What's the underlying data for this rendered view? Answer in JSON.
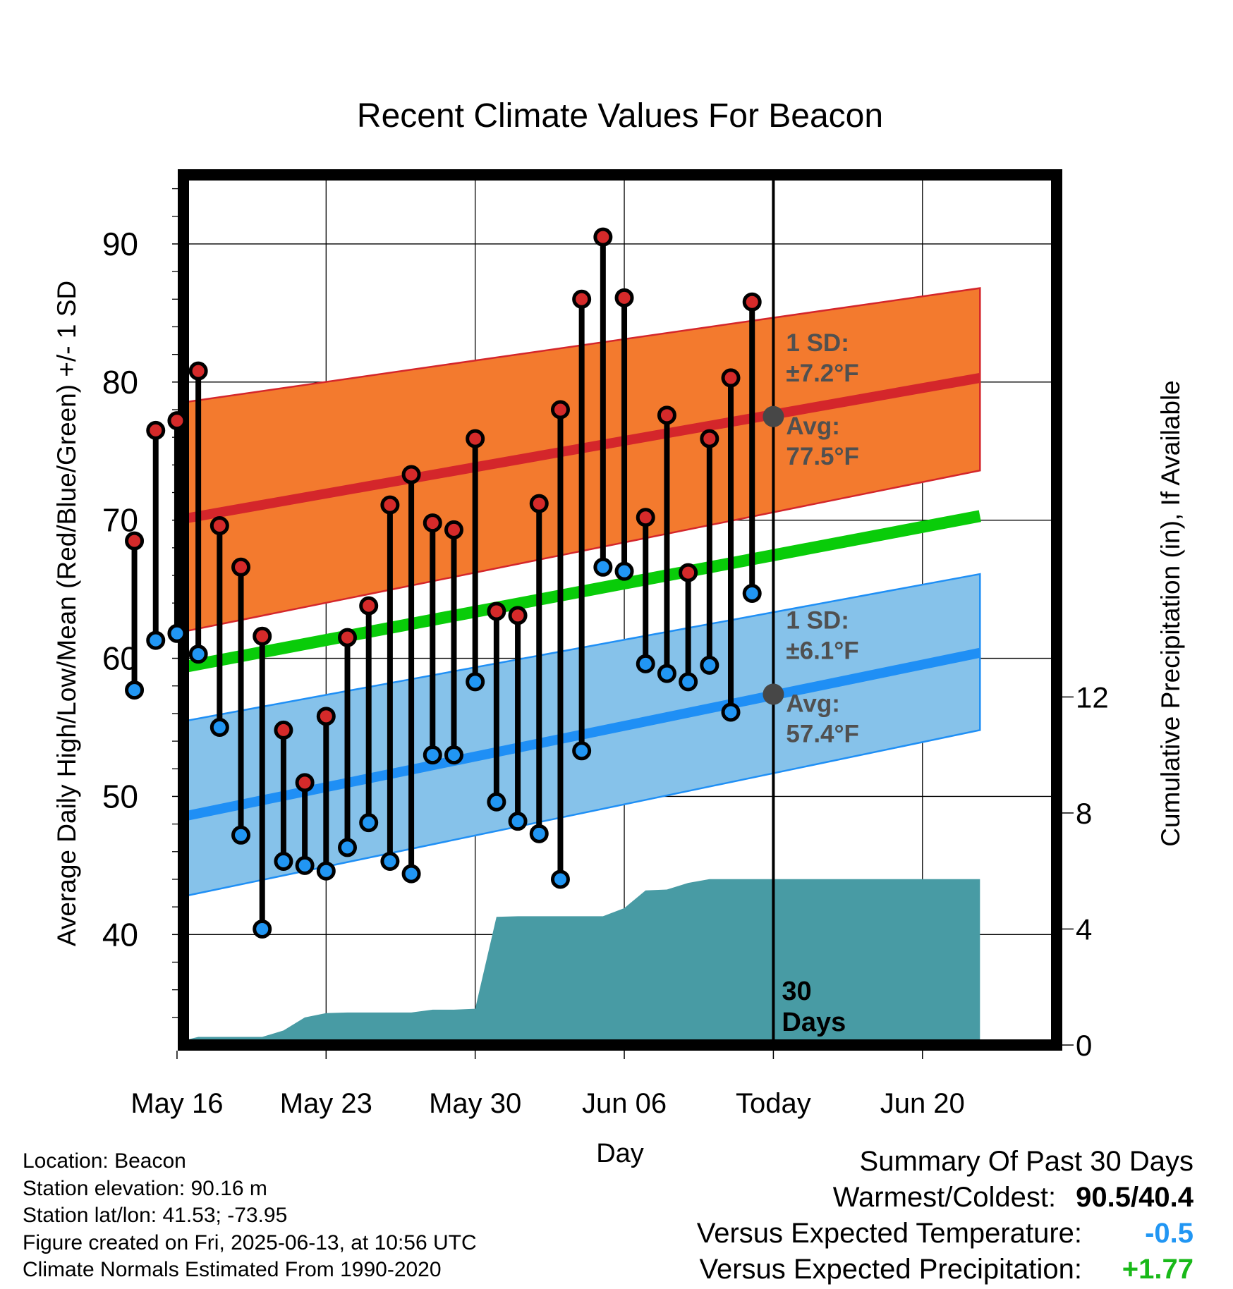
{
  "chart_data": {
    "type": "line",
    "title": "Recent Climate Values For Beacon",
    "xlabel": "Day",
    "ylabel_left": "Average Daily High/Low/Mean (Red/Blue/Green) +/- 1 SD",
    "ylabel_right": "Cumulative Precipitation (in), If Available",
    "x_range_days": [
      -27.7,
      13.3
    ],
    "ylim_left": [
      32,
      95
    ],
    "ylim_right": [
      0,
      30
    ],
    "left_ticks": [
      40,
      50,
      60,
      70,
      80,
      90
    ],
    "right_ticks": [
      0,
      4,
      8,
      12
    ],
    "x_ticks": [
      {
        "day": -28,
        "label": "May 16"
      },
      {
        "day": -21,
        "label": "May 23"
      },
      {
        "day": -14,
        "label": "May 30"
      },
      {
        "day": -7,
        "label": "Jun 06"
      },
      {
        "day": 0,
        "label": "Today"
      },
      {
        "day": 7,
        "label": "Jun 20"
      }
    ],
    "today_day": 0,
    "today_label_line1": "30",
    "today_label_line2": "Days",
    "normal_high": {
      "day_start": -31,
      "day_end": 9.7,
      "mean": [
        69.2,
        80.3
      ],
      "sd_band": [
        [
          60.9,
          77.8
        ],
        [
          73.6,
          86.8
        ]
      ]
    },
    "normal_low": {
      "day_start": -31,
      "day_end": 9.7,
      "mean": [
        47.5,
        60.4
      ],
      "sd_band": [
        [
          41.7,
          54.5
        ],
        [
          54.8,
          66.1
        ]
      ]
    },
    "normal_mean": {
      "day_start": -31,
      "day_end": 9.7,
      "values": [
        58.4,
        70.3
      ]
    },
    "annotations": {
      "high_sd_line1": "1 SD:",
      "high_sd_line2": "±7.2°F",
      "high_avg_line1": "Avg:",
      "high_avg_line2": "77.5°F",
      "high_avg_value": 77.5,
      "low_sd_line1": "1 SD:",
      "low_sd_line2": "±6.1°F",
      "low_avg_line1": "Avg:",
      "low_avg_line2": "57.4°F",
      "low_avg_value": 57.4
    },
    "daily": {
      "days": [
        -30,
        -29,
        -28,
        -27,
        -26,
        -25,
        -24,
        -23,
        -22,
        -21,
        -20,
        -19,
        -18,
        -17,
        -16,
        -15,
        -14,
        -13,
        -12,
        -11,
        -10,
        -9,
        -8,
        -7,
        -6,
        -5,
        -4,
        -3,
        -2,
        -1
      ],
      "highs": [
        68.5,
        76.5,
        77.2,
        80.8,
        69.6,
        66.6,
        61.6,
        54.8,
        51.0,
        55.8,
        61.5,
        63.8,
        71.1,
        73.3,
        69.8,
        69.3,
        75.9,
        63.4,
        63.1,
        71.2,
        78.0,
        86.0,
        90.5,
        86.1,
        70.2,
        77.6,
        66.2,
        75.9,
        80.3,
        85.8
      ],
      "lows": [
        57.7,
        61.3,
        61.8,
        60.3,
        55.0,
        47.2,
        40.4,
        45.3,
        45.0,
        44.6,
        46.3,
        48.1,
        45.3,
        44.4,
        53.0,
        53.0,
        58.3,
        49.6,
        48.2,
        47.3,
        44.0,
        53.3,
        66.6,
        66.3,
        59.6,
        58.9,
        58.3,
        59.5,
        56.1,
        64.7
      ]
    },
    "precipitation": {
      "cumulative": [
        [
          -30.5,
          0.0
        ],
        [
          -30,
          0.1
        ],
        [
          -29,
          0.1
        ],
        [
          -28,
          0.1
        ],
        [
          -27,
          0.28
        ],
        [
          -26,
          0.28
        ],
        [
          -25,
          0.28
        ],
        [
          -24,
          0.28
        ],
        [
          -23,
          0.5
        ],
        [
          -22,
          0.95
        ],
        [
          -21,
          1.1
        ],
        [
          -20,
          1.12
        ],
        [
          -19,
          1.12
        ],
        [
          -18,
          1.12
        ],
        [
          -17,
          1.12
        ],
        [
          -16,
          1.22
        ],
        [
          -15,
          1.22
        ],
        [
          -14,
          1.25
        ],
        [
          -13,
          4.42
        ],
        [
          -12,
          4.44
        ],
        [
          -11,
          4.44
        ],
        [
          -10,
          4.44
        ],
        [
          -9,
          4.44
        ],
        [
          -8,
          4.44
        ],
        [
          -7,
          4.72
        ],
        [
          -6,
          5.33
        ],
        [
          -5,
          5.36
        ],
        [
          -4,
          5.59
        ],
        [
          -3,
          5.72
        ],
        [
          -2,
          5.72
        ],
        [
          -1,
          5.72
        ],
        [
          0,
          5.72
        ],
        [
          9.7,
          5.72
        ]
      ]
    },
    "colors": {
      "high_band": "#f37a2e",
      "high_mean": "#d4262b",
      "low_band": "#86c2ea",
      "low_mean": "#1f8ff5",
      "mean_line": "#09cc09",
      "precip": "#489ba4",
      "high_marker": "#d52a2a",
      "low_marker": "#2196f3",
      "annotation": "#505050"
    }
  },
  "info": {
    "location": "Location: Beacon",
    "elevation": "Station elevation: 90.16 m",
    "latlon": "Station lat/lon: 41.53; -73.95",
    "created": "Figure created on Fri, 2025-06-13, at 10:56 UTC",
    "normals": "Climate Normals Estimated From 1990-2020"
  },
  "summary": {
    "title": "Summary Of Past 30 Days",
    "warm_cold_label": "Warmest/Coldest:",
    "warm_value": "90.5",
    "cold_value": "40.4",
    "temp_label": "Versus Expected Temperature:",
    "temp_value": "-0.5",
    "temp_color": "#2196f3",
    "precip_label": "Versus Expected Precipitation:",
    "precip_value": "+1.77",
    "precip_color": "#19b919"
  }
}
